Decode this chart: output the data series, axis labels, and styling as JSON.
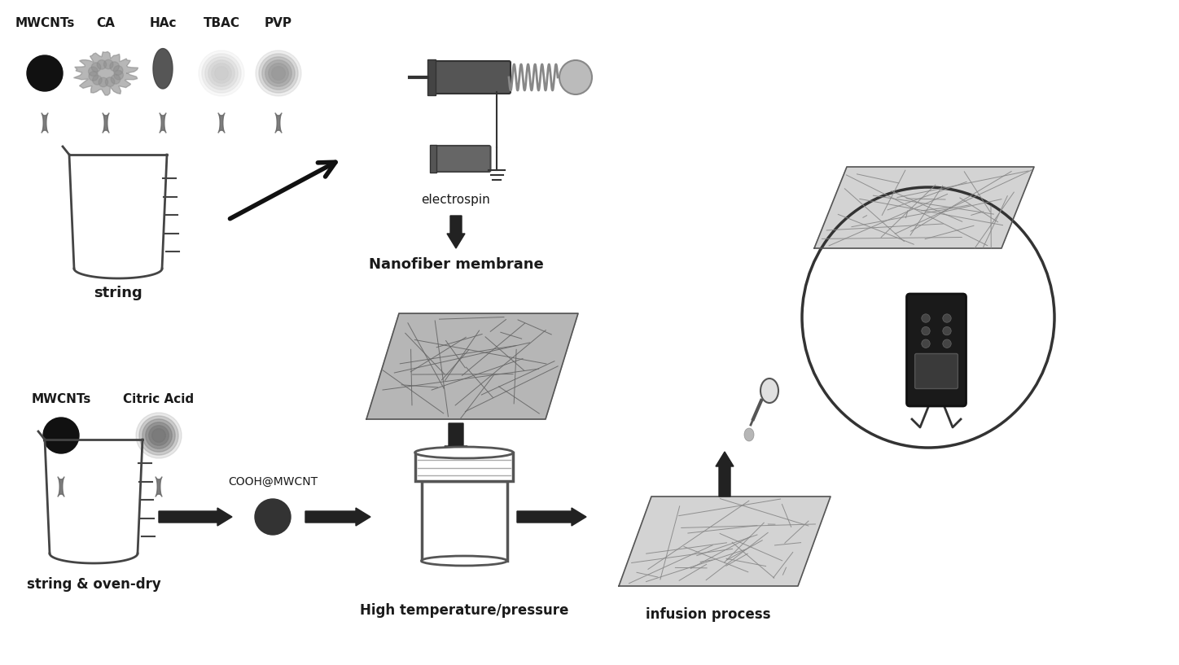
{
  "bg_color": "#ffffff",
  "top_labels": [
    "MWCNTs",
    "CA",
    "HAc",
    "TBAC",
    "PVP"
  ],
  "label_string": "string",
  "label_string_oven": "string & oven-dry",
  "label_electrospin": "electrospin",
  "label_nanofiber": "Nanofiber membrane",
  "label_cooh": "COOH@MWCNT",
  "label_high_temp": "High temperature/pressure",
  "label_infusion": "infusion process",
  "label_mwcnts_bot": "MWCNTs",
  "label_citric": "Citric Acid",
  "text_color": "#1a1a1a"
}
